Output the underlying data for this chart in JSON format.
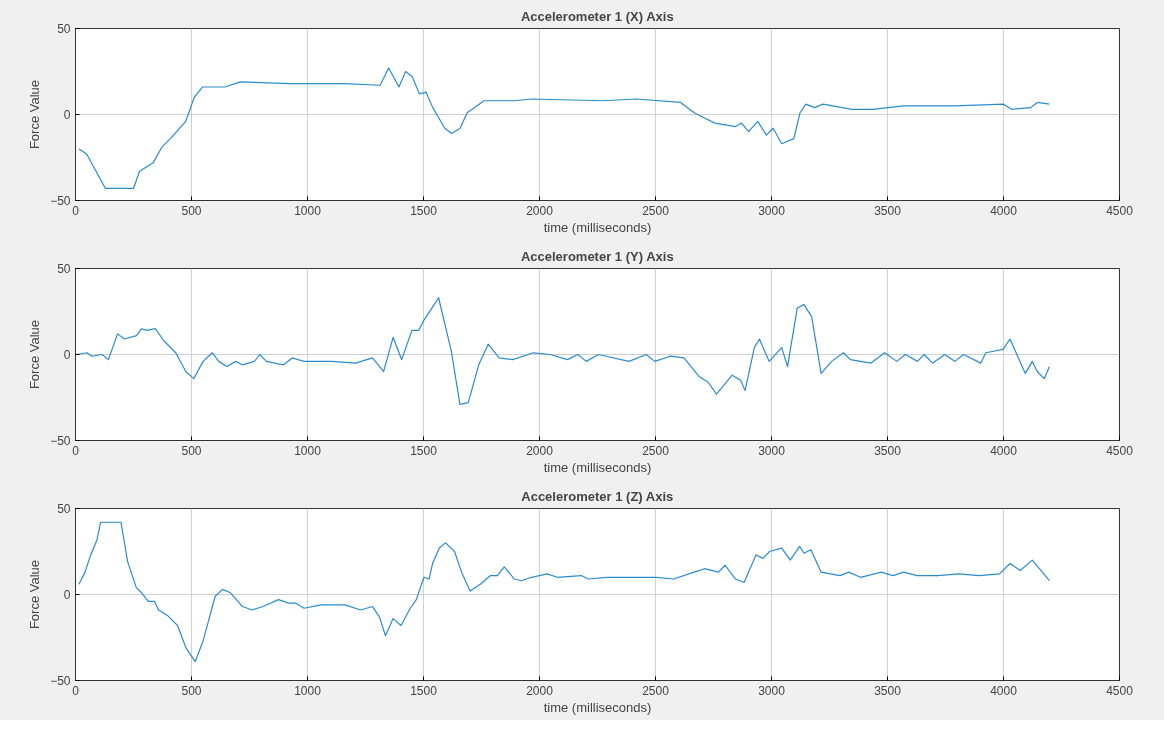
{
  "chart_data": [
    {
      "type": "line",
      "title": "Accelerometer 1 (X) Axis",
      "xlabel": "time (milliseconds)",
      "ylabel": "Force Value",
      "xlim": [
        0,
        4500
      ],
      "ylim": [
        -50,
        50
      ],
      "xticks": [
        0,
        500,
        1000,
        1500,
        2000,
        2500,
        3000,
        3500,
        4000,
        4500
      ],
      "yticks": [
        -50,
        0,
        50
      ],
      "grid": true,
      "x": [
        15,
        48,
        129,
        250,
        276,
        335,
        372,
        409,
        475,
        512,
        548,
        644,
        710,
        923,
        1158,
        1313,
        1350,
        1394,
        1423,
        1452,
        1482,
        1511,
        1540,
        1592,
        1621,
        1658,
        1688,
        1761,
        1893,
        1967,
        2276,
        2416,
        2608,
        2667,
        2711,
        2756,
        2800,
        2845,
        2871,
        2901,
        2941,
        2978,
        3007,
        3044,
        3096,
        3123,
        3148,
        3185,
        3222,
        3347,
        3436,
        3569,
        3791,
        4000,
        4035,
        4117,
        4146,
        4198
      ],
      "series": [
        {
          "color": "#2b8bd0",
          "values": [
            -20,
            -23,
            -43,
            -43,
            -33,
            -28,
            -19,
            -14,
            -4,
            10,
            16,
            16,
            19,
            18,
            18,
            17,
            27,
            16,
            25,
            22,
            12,
            13,
            4,
            -8,
            -11,
            -8,
            1,
            8,
            8,
            9,
            8,
            9,
            7,
            1,
            -2,
            -5,
            -6,
            -7,
            -5,
            -10,
            -4,
            -12,
            -8,
            -17,
            -14,
            1,
            6,
            4,
            6,
            3,
            3,
            5,
            5,
            6,
            3,
            4,
            7,
            6
          ]
        }
      ]
    },
    {
      "type": "line",
      "title": "Accelerometer 1 (Y) Axis",
      "xlabel": "time (milliseconds)",
      "ylabel": "Force Value",
      "xlim": [
        0,
        4500
      ],
      "ylim": [
        -50,
        50
      ],
      "xticks": [
        0,
        500,
        1000,
        1500,
        2000,
        2500,
        3000,
        3500,
        4000,
        4500
      ],
      "yticks": [
        -50,
        0,
        50
      ],
      "grid": true,
      "x": [
        4,
        49,
        71,
        115,
        142,
        181,
        211,
        263,
        285,
        307,
        344,
        381,
        432,
        476,
        510,
        550,
        590,
        617,
        653,
        690,
        720,
        771,
        794,
        823,
        897,
        934,
        985,
        1103,
        1207,
        1280,
        1328,
        1369,
        1406,
        1450,
        1479,
        1502,
        1546,
        1565,
        1620,
        1657,
        1693,
        1738,
        1779,
        1826,
        1885,
        1974,
        2047,
        2121,
        2165,
        2202,
        2254,
        2386,
        2460,
        2497,
        2564,
        2623,
        2689,
        2726,
        2763,
        2830,
        2867,
        2886,
        2926,
        2948,
        2990,
        3044,
        3069,
        3111,
        3140,
        3173,
        3214,
        3259,
        3310,
        3340,
        3429,
        3488,
        3540,
        3577,
        3629,
        3658,
        3695,
        3747,
        3791,
        3828,
        3902,
        3924,
        3998,
        4028,
        4094,
        4124,
        4146,
        4176,
        4198
      ],
      "series": [
        {
          "color": "#2b8bd0",
          "values": [
            0,
            1,
            -1,
            0,
            -3,
            12,
            9,
            11,
            15,
            14,
            15,
            8,
            1,
            -10,
            -14,
            -4,
            1,
            -4,
            -7,
            -4,
            -6,
            -4,
            0,
            -4,
            -6,
            -2,
            -4,
            -4,
            -5,
            -2,
            -10,
            10,
            -3,
            14,
            14,
            20,
            29,
            33,
            2,
            -29,
            -28,
            -6,
            6,
            -2,
            -3,
            1,
            0,
            -3,
            0,
            -4,
            0,
            -4,
            0,
            -4,
            -1,
            -2,
            -13,
            -16,
            -23,
            -12,
            -15,
            -21,
            4,
            9,
            -4,
            4,
            -7,
            27,
            29,
            22,
            -11,
            -4,
            1,
            -3,
            -5,
            1,
            -4,
            0,
            -4,
            0,
            -5,
            0,
            -4,
            0,
            -5,
            1,
            3,
            9,
            -11,
            -4,
            -10,
            -14,
            -7
          ]
        }
      ]
    },
    {
      "type": "line",
      "title": "Accelerometer 1 (Z) Axis",
      "xlabel": "time (milliseconds)",
      "ylabel": "Force Value",
      "xlim": [
        0,
        4500
      ],
      "ylim": [
        -50,
        50
      ],
      "xticks": [
        0,
        500,
        1000,
        1500,
        2000,
        2500,
        3000,
        3500,
        4000,
        4500
      ],
      "yticks": [
        -50,
        0,
        50
      ],
      "grid": true,
      "x": [
        15,
        41,
        63,
        93,
        108,
        196,
        225,
        262,
        285,
        314,
        341,
        358,
        395,
        440,
        476,
        516,
        550,
        602,
        634,
        668,
        720,
        761,
        808,
        875,
        919,
        948,
        985,
        1059,
        1162,
        1229,
        1280,
        1310,
        1336,
        1369,
        1403,
        1443,
        1469,
        1502,
        1524,
        1539,
        1568,
        1595,
        1634,
        1664,
        1701,
        1745,
        1789,
        1819,
        1848,
        1892,
        1922,
        1966,
        2033,
        2077,
        2180,
        2210,
        2291,
        2386,
        2504,
        2578,
        2667,
        2711,
        2771,
        2800,
        2845,
        2882,
        2933,
        2963,
        2992,
        3044,
        3081,
        3121,
        3140,
        3170,
        3214,
        3295,
        3332,
        3384,
        3473,
        3524,
        3569,
        3628,
        3717,
        3806,
        3894,
        3983,
        4028,
        4072,
        4124,
        4161,
        4198
      ],
      "series": [
        {
          "color": "#2b8bd0",
          "values": [
            6,
            13,
            22,
            32,
            42,
            42,
            19,
            4,
            1,
            -4,
            -4,
            -9,
            -12,
            -18,
            -31,
            -39,
            -27,
            -1,
            3,
            1,
            -7,
            -9,
            -7,
            -3,
            -5,
            -5,
            -8,
            -6,
            -6,
            -9,
            -7,
            -13,
            -24,
            -14,
            -18,
            -8,
            -3,
            10,
            9,
            18,
            27,
            30,
            25,
            13,
            2,
            6,
            11,
            11,
            16,
            9,
            8,
            10,
            12,
            10,
            11,
            9,
            10,
            10,
            10,
            9,
            13,
            15,
            13,
            17,
            9,
            7,
            23,
            21,
            25,
            27,
            20,
            28,
            24,
            26,
            13,
            11,
            13,
            10,
            13,
            11,
            13,
            11,
            11,
            12,
            11,
            12,
            18,
            14,
            20,
            14,
            8
          ]
        }
      ]
    }
  ]
}
